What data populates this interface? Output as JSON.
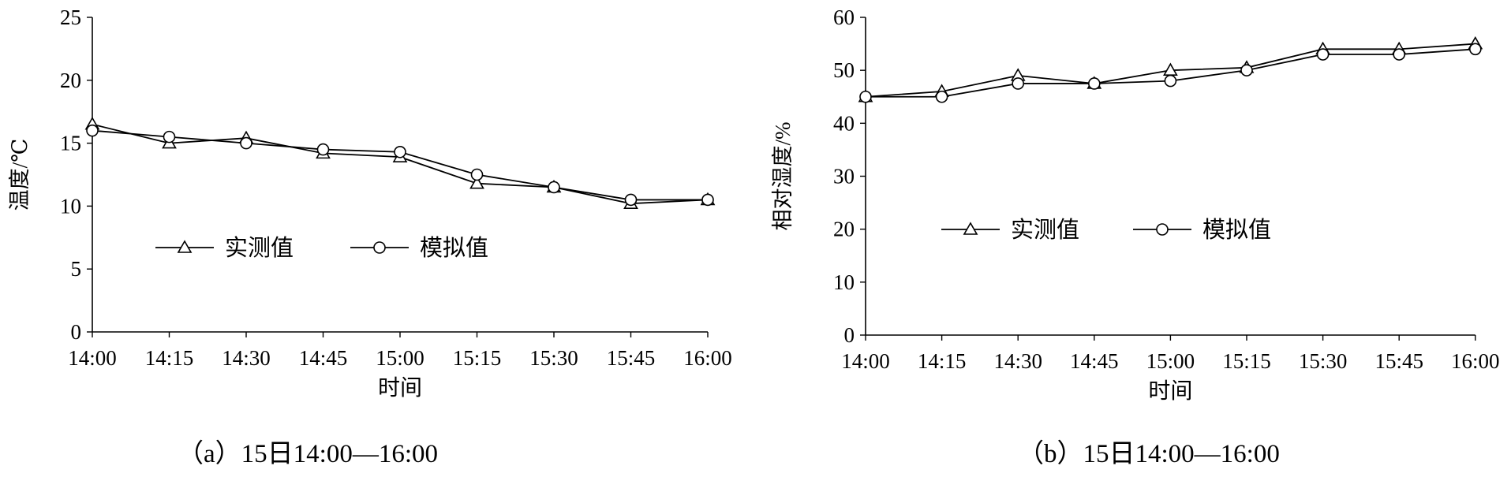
{
  "chart_data": [
    {
      "type": "line",
      "title": "",
      "caption": "（a）15日14:00—16:00",
      "xlabel": "时间",
      "ylabel": "温度/℃",
      "categories": [
        "14:00",
        "14:15",
        "14:30",
        "14:45",
        "15:00",
        "15:15",
        "15:30",
        "15:45",
        "16:00"
      ],
      "ylim": [
        0,
        25
      ],
      "yticks": [
        0,
        5,
        10,
        15,
        20,
        25
      ],
      "grid": false,
      "legend": "center-left",
      "series": [
        {
          "name": "实测值",
          "marker": "triangle",
          "values": [
            16.5,
            15.0,
            15.4,
            14.2,
            13.9,
            11.8,
            11.5,
            10.2,
            10.5
          ]
        },
        {
          "name": "模拟值",
          "marker": "circle",
          "values": [
            16.0,
            15.5,
            15.0,
            14.5,
            14.3,
            12.5,
            11.5,
            10.5,
            10.5
          ]
        }
      ]
    },
    {
      "type": "line",
      "title": "",
      "caption": "（b）15日14:00—16:00",
      "xlabel": "时间",
      "ylabel": "相对湿度/%",
      "categories": [
        "14:00",
        "14:15",
        "14:30",
        "14:45",
        "15:00",
        "15:15",
        "15:30",
        "15:45",
        "16:00"
      ],
      "ylim": [
        0,
        60
      ],
      "yticks": [
        0,
        10,
        20,
        30,
        40,
        50,
        60
      ],
      "grid": false,
      "legend": "center",
      "series": [
        {
          "name": "实测值",
          "marker": "triangle",
          "values": [
            45.0,
            46.0,
            49.0,
            47.5,
            50.0,
            50.5,
            54.0,
            54.0,
            55.0
          ]
        },
        {
          "name": "模拟值",
          "marker": "circle",
          "values": [
            45.0,
            45.0,
            47.5,
            47.5,
            48.0,
            50.0,
            53.0,
            53.0,
            54.0
          ]
        }
      ]
    }
  ]
}
